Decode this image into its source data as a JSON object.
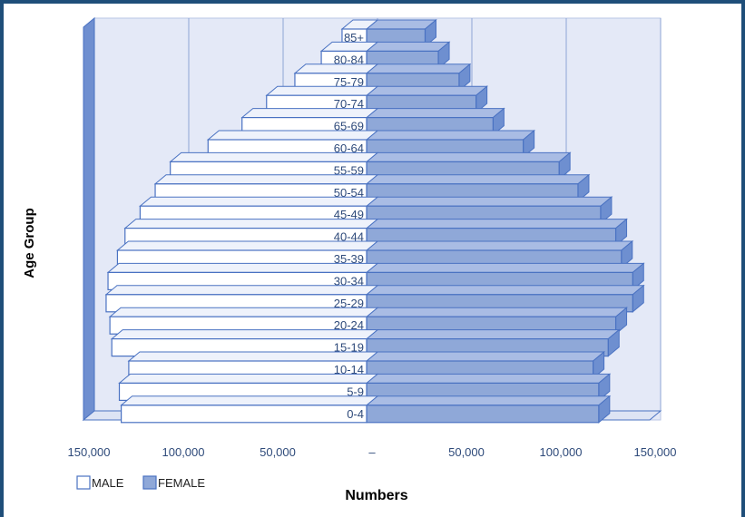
{
  "chart_data": {
    "type": "bar",
    "orientation": "horizontal",
    "layout": "population-pyramid",
    "xlabel": "Numbers",
    "ylabel": "Age Group",
    "xlim": [
      -150000,
      150000
    ],
    "x_ticks": [
      -150000,
      -100000,
      -50000,
      0,
      50000,
      100000,
      150000
    ],
    "x_tick_labels": [
      "150,000",
      "100,000",
      "50,000",
      "–",
      "50,000",
      "100,000",
      "150,000"
    ],
    "categories": [
      "0-4",
      "5-9",
      "10-14",
      "15-19",
      "20-24",
      "25-29",
      "30-34",
      "35-39",
      "40-44",
      "45-49",
      "50-54",
      "55-59",
      "60-64",
      "65-69",
      "70-74",
      "75-79",
      "80-84",
      "85+"
    ],
    "series": [
      {
        "name": "MALE",
        "values": [
          130000,
          131000,
          126000,
          135000,
          136000,
          138000,
          137000,
          132000,
          128000,
          120000,
          112000,
          104000,
          84000,
          66000,
          53000,
          38000,
          24000,
          13000
        ]
      },
      {
        "name": "FEMALE",
        "values": [
          123000,
          123000,
          120000,
          128000,
          132000,
          141000,
          141000,
          135000,
          132000,
          124000,
          112000,
          102000,
          83000,
          67000,
          58000,
          49000,
          38000,
          31000
        ]
      }
    ],
    "colors": {
      "MALE": "#ffffff",
      "FEMALE": "#8fa8d8",
      "outline": "#4a72c2",
      "wall": "#e4e9f7",
      "gridline": "#8ea5d5",
      "side": "#6f8fd0"
    },
    "legend": {
      "position": "bottom-left"
    },
    "grid": true
  }
}
